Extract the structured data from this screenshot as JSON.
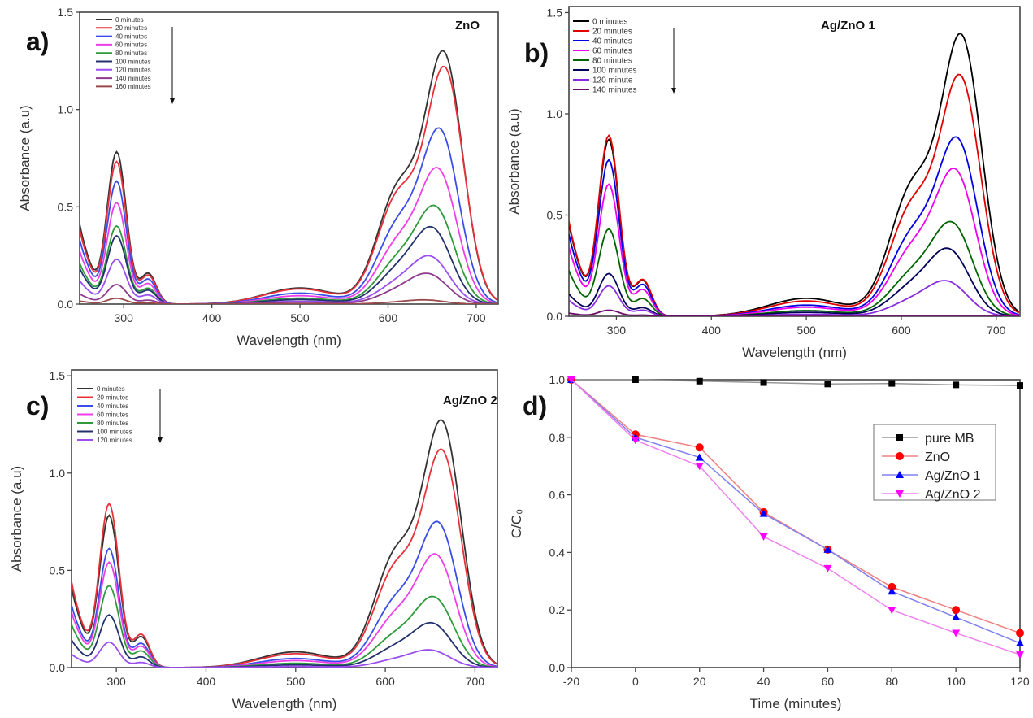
{
  "chart_data": [
    {
      "type": "line",
      "panel_label": "a)",
      "title": "ZnO",
      "xlabel": "Wavelength (nm)",
      "ylabel": "Absorbance (a.u)",
      "xlim": [
        250,
        725
      ],
      "ylim": [
        0,
        1.5
      ],
      "xticks": [
        300,
        400,
        500,
        600,
        700
      ],
      "yticks": [
        "0.0",
        "0.5",
        "1.0",
        "1.5"
      ],
      "legend_placement": "top-left",
      "series": [
        {
          "name": "0 minutes",
          "color": "#333333",
          "uv_peak": 0.78,
          "vis_peak": 1.38,
          "vis_peak_nm": 664
        },
        {
          "name": "20 minutes",
          "color": "#e8303a",
          "uv_peak": 0.73,
          "vis_peak": 1.3,
          "vis_peak_nm": 665
        },
        {
          "name": "40 minutes",
          "color": "#3a4de8",
          "uv_peak": 0.63,
          "vis_peak": 0.94,
          "vis_peak_nm": 660
        },
        {
          "name": "60 minutes",
          "color": "#ee3ee8",
          "uv_peak": 0.52,
          "vis_peak": 0.72,
          "vis_peak_nm": 658
        },
        {
          "name": "80 minutes",
          "color": "#2e9a3a",
          "uv_peak": 0.4,
          "vis_peak": 0.51,
          "vis_peak_nm": 655
        },
        {
          "name": "100 minutes",
          "color": "#22306e",
          "uv_peak": 0.35,
          "vis_peak": 0.39,
          "vis_peak_nm": 652
        },
        {
          "name": "120 minutes",
          "color": "#9a4ef0",
          "uv_peak": 0.23,
          "vis_peak": 0.24,
          "vis_peak_nm": 650
        },
        {
          "name": "140 minutes",
          "color": "#8e3a8e",
          "uv_peak": 0.1,
          "vis_peak": 0.15,
          "vis_peak_nm": 648
        },
        {
          "name": "160 minutes",
          "color": "#9a4a4a",
          "uv_peak": 0.03,
          "vis_peak": 0.02,
          "vis_peak_nm": 645
        }
      ]
    },
    {
      "type": "line",
      "panel_label": "b)",
      "title": "Ag/ZnO 1",
      "xlabel": "Wavelength (nm)",
      "ylabel": "Absorbance (a.u)",
      "xlim": [
        250,
        725
      ],
      "ylim": [
        0,
        1.5
      ],
      "xticks": [
        300,
        400,
        500,
        600,
        700
      ],
      "yticks": [
        "0.0",
        "0.5",
        "1.0",
        "1.5"
      ],
      "legend_placement": "top-left",
      "series": [
        {
          "name": "0 minutes",
          "color": "#000000",
          "uv_peak": 0.87,
          "vis_peak": 1.48,
          "vis_peak_nm": 664
        },
        {
          "name": "20 minutes",
          "color": "#e00000",
          "uv_peak": 0.89,
          "vis_peak": 1.26,
          "vis_peak_nm": 663
        },
        {
          "name": "40 minutes",
          "color": "#0000e0",
          "uv_peak": 0.77,
          "vis_peak": 0.92,
          "vis_peak_nm": 660
        },
        {
          "name": "60 minutes",
          "color": "#ee00ee",
          "uv_peak": 0.65,
          "vis_peak": 0.75,
          "vis_peak_nm": 658
        },
        {
          "name": "80 minutes",
          "color": "#006400",
          "uv_peak": 0.43,
          "vis_peak": 0.47,
          "vis_peak_nm": 655
        },
        {
          "name": "100 minutes",
          "color": "#00005a",
          "uv_peak": 0.21,
          "vis_peak": 0.33,
          "vis_peak_nm": 652
        },
        {
          "name": "120 minute",
          "color": "#8a2be2",
          "uv_peak": 0.15,
          "vis_peak": 0.17,
          "vis_peak_nm": 650
        },
        {
          "name": "140 minutes",
          "color": "#6a0a6a",
          "uv_peak": 0.03,
          "vis_peak": 0.0,
          "vis_peak_nm": 650
        }
      ]
    },
    {
      "type": "line",
      "panel_label": "c)",
      "title": "Ag/ZnO 2",
      "xlabel": "Wavelength (nm)",
      "ylabel": "Absorbance (a.u)",
      "xlim": [
        250,
        725
      ],
      "ylim": [
        0,
        1.5
      ],
      "xticks": [
        300,
        400,
        500,
        600,
        700
      ],
      "yticks": [
        "0.0",
        "0.5",
        "1.0",
        "1.5"
      ],
      "legend_placement": "top-left",
      "series": [
        {
          "name": "0 minutes",
          "color": "#333333",
          "uv_peak": 0.78,
          "vis_peak": 1.35,
          "vis_peak_nm": 664
        },
        {
          "name": "20 minutes",
          "color": "#e8303a",
          "uv_peak": 0.84,
          "vis_peak": 1.19,
          "vis_peak_nm": 664
        },
        {
          "name": "40 minutes",
          "color": "#3a4de8",
          "uv_peak": 0.61,
          "vis_peak": 0.78,
          "vis_peak_nm": 660
        },
        {
          "name": "60 minutes",
          "color": "#ee3ee8",
          "uv_peak": 0.54,
          "vis_peak": 0.6,
          "vis_peak_nm": 658
        },
        {
          "name": "80 minutes",
          "color": "#2e9a3a",
          "uv_peak": 0.42,
          "vis_peak": 0.37,
          "vis_peak_nm": 656
        },
        {
          "name": "100 minutes",
          "color": "#22306e",
          "uv_peak": 0.27,
          "vis_peak": 0.23,
          "vis_peak_nm": 654
        },
        {
          "name": "120  minutes",
          "color": "#9a4ef0",
          "uv_peak": 0.13,
          "vis_peak": 0.09,
          "vis_peak_nm": 652
        }
      ]
    },
    {
      "type": "line",
      "panel_label": "d)",
      "title": "",
      "xlabel": "Time (minutes)",
      "ylabel": "C/C₀",
      "xlim": [
        -20,
        120
      ],
      "ylim": [
        0,
        1.0
      ],
      "xticks": [
        -20,
        0,
        20,
        40,
        60,
        80,
        100,
        120
      ],
      "yticks": [
        "0.0",
        "0.2",
        "0.4",
        "0.6",
        "0.8",
        "1.0"
      ],
      "legend_placement": "right",
      "x": [
        -20,
        0,
        20,
        40,
        60,
        80,
        100,
        120
      ],
      "series": [
        {
          "name": "pure MB",
          "color": "#000000",
          "line_color": "#999999",
          "marker": "square",
          "values": [
            1.0,
            1.0,
            0.995,
            0.99,
            0.985,
            0.987,
            0.982,
            0.98
          ]
        },
        {
          "name": "ZnO",
          "color": "#ff0000",
          "line_color": "#f08080",
          "marker": "circle",
          "values": [
            1.0,
            0.81,
            0.765,
            0.54,
            0.41,
            0.28,
            0.2,
            0.12
          ]
        },
        {
          "name": "Ag/ZnO 1",
          "color": "#0000ff",
          "line_color": "#8080f0",
          "marker": "triangle-up",
          "values": [
            1.0,
            0.8,
            0.73,
            0.535,
            0.41,
            0.265,
            0.175,
            0.085
          ]
        },
        {
          "name": "Ag/ZnO 2",
          "color": "#ff00ff",
          "line_color": "#f080f0",
          "marker": "triangle-down",
          "values": [
            1.0,
            0.79,
            0.7,
            0.455,
            0.345,
            0.2,
            0.12,
            0.045
          ]
        }
      ]
    }
  ]
}
